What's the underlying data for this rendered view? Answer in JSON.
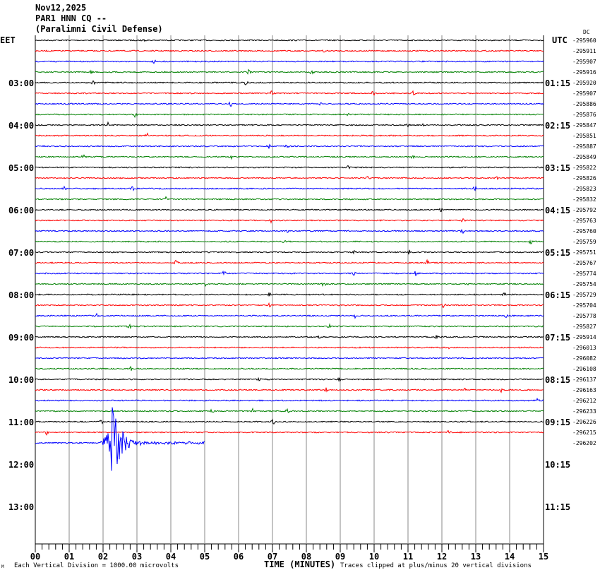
{
  "header": {
    "date": "Nov12,2025",
    "station": "PAR1 HNN CQ --",
    "location": "(Paralimni Civil Defense)"
  },
  "left_timezone": "EET",
  "right_timezone": "UTC",
  "dc_label": "DC",
  "footer": {
    "scale": "Each Vertical Division = 1000.00 microvolts",
    "xlabel": "TIME (MINUTES)",
    "clip_note": "Traces clipped at plus/minus 20 vertical divisions",
    "corner_mark": "M"
  },
  "chart_data": {
    "type": "line",
    "title": "PAR1 HNN CQ -- helicorder",
    "xlabel": "TIME (MINUTES)",
    "xlim": [
      0,
      15
    ],
    "x_ticks": [
      "00",
      "01",
      "02",
      "03",
      "04",
      "05",
      "06",
      "07",
      "08",
      "09",
      "10",
      "11",
      "12",
      "13",
      "14",
      "15"
    ],
    "left_hour_labels": [
      "03:00",
      "04:00",
      "05:00",
      "06:00",
      "07:00",
      "08:00",
      "09:00",
      "10:00",
      "11:00",
      "12:00",
      "13:00"
    ],
    "right_hour_labels": [
      "01:15",
      "02:15",
      "03:15",
      "04:15",
      "05:15",
      "06:15",
      "07:15",
      "08:15",
      "09:15",
      "10:15",
      "11:15"
    ],
    "trace_colors": [
      "#000000",
      "#ff0000",
      "#0000ff",
      "#008000"
    ],
    "trace_offsets": [
      "-295960",
      "-295911",
      "-295907",
      "-295916",
      "-295920",
      "-295907",
      "-295886",
      "-295876",
      "-295847",
      "-295851",
      "-295887",
      "-295849",
      "-295822",
      "-295826",
      "-295823",
      "-295832",
      "-295792",
      "-295763",
      "-295760",
      "-295759",
      "-295751",
      "-295767",
      "-295774",
      "-295754",
      "-295729",
      "-295704",
      "-295778",
      "-295827",
      "-295914",
      "-296013",
      "-296082",
      "-296108",
      "-296137",
      "-296163",
      "-296212",
      "-296233",
      "-296226",
      "-296215",
      "-296202"
    ],
    "last_trace_end_minute": 5,
    "event": {
      "trace_index": 38,
      "start_minute": 1.9,
      "peak_minute": 2.25,
      "end_minute": 5
    }
  }
}
